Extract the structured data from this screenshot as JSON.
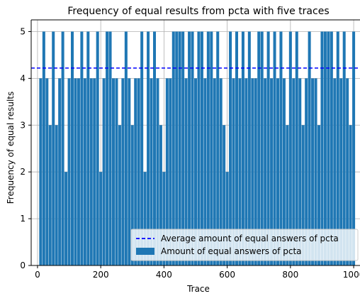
{
  "chart_data": {
    "type": "bar",
    "title": "Frequency of equal results from pcta with five traces",
    "xlabel": "Trace",
    "ylabel": "Frequency of equal results",
    "xlim": [
      -20,
      1020
    ],
    "ylim": [
      0,
      5.25
    ],
    "xticks": [
      0,
      200,
      400,
      600,
      800,
      1000
    ],
    "yticks": [
      0,
      1,
      2,
      3,
      4,
      5
    ],
    "grid": true,
    "legend_position": "lower-right",
    "bar_width": 9,
    "average": 4.22,
    "series": [
      {
        "name": "Amount of equal answers of pcta",
        "color": "#1f77b4",
        "x": [
          10,
          20,
          30,
          40,
          50,
          60,
          70,
          80,
          90,
          100,
          110,
          120,
          130,
          140,
          150,
          160,
          170,
          180,
          190,
          200,
          210,
          220,
          230,
          240,
          250,
          260,
          270,
          280,
          290,
          300,
          310,
          320,
          330,
          340,
          350,
          360,
          370,
          380,
          390,
          400,
          410,
          420,
          430,
          440,
          450,
          460,
          470,
          480,
          490,
          500,
          510,
          520,
          530,
          540,
          550,
          560,
          570,
          580,
          590,
          600,
          610,
          620,
          630,
          640,
          650,
          660,
          670,
          680,
          690,
          700,
          710,
          720,
          730,
          740,
          750,
          760,
          770,
          780,
          790,
          800,
          810,
          820,
          830,
          840,
          850,
          860,
          870,
          880,
          890,
          900,
          910,
          920,
          930,
          940,
          950,
          960,
          970,
          980,
          990,
          1000
        ],
        "values": [
          4,
          5,
          4,
          3,
          5,
          3,
          4,
          5,
          2,
          4,
          5,
          4,
          4,
          5,
          4,
          5,
          4,
          4,
          5,
          2,
          4,
          5,
          5,
          4,
          4,
          3,
          4,
          5,
          4,
          3,
          4,
          4,
          5,
          2,
          5,
          4,
          5,
          4,
          3,
          2,
          4,
          4,
          5,
          5,
          5,
          5,
          4,
          5,
          5,
          4,
          5,
          5,
          4,
          5,
          5,
          4,
          5,
          4,
          3,
          2,
          5,
          4,
          5,
          4,
          5,
          4,
          5,
          4,
          4,
          5,
          5,
          4,
          5,
          4,
          5,
          4,
          5,
          4,
          3,
          5,
          4,
          5,
          4,
          3,
          4,
          5,
          4,
          4,
          3,
          5,
          5,
          5,
          5,
          4,
          5,
          4,
          5,
          4,
          3,
          5
        ]
      }
    ],
    "average_line": {
      "name": "Average amount of equal answers of pcta",
      "color": "#0000ff",
      "style": "dashed"
    }
  }
}
